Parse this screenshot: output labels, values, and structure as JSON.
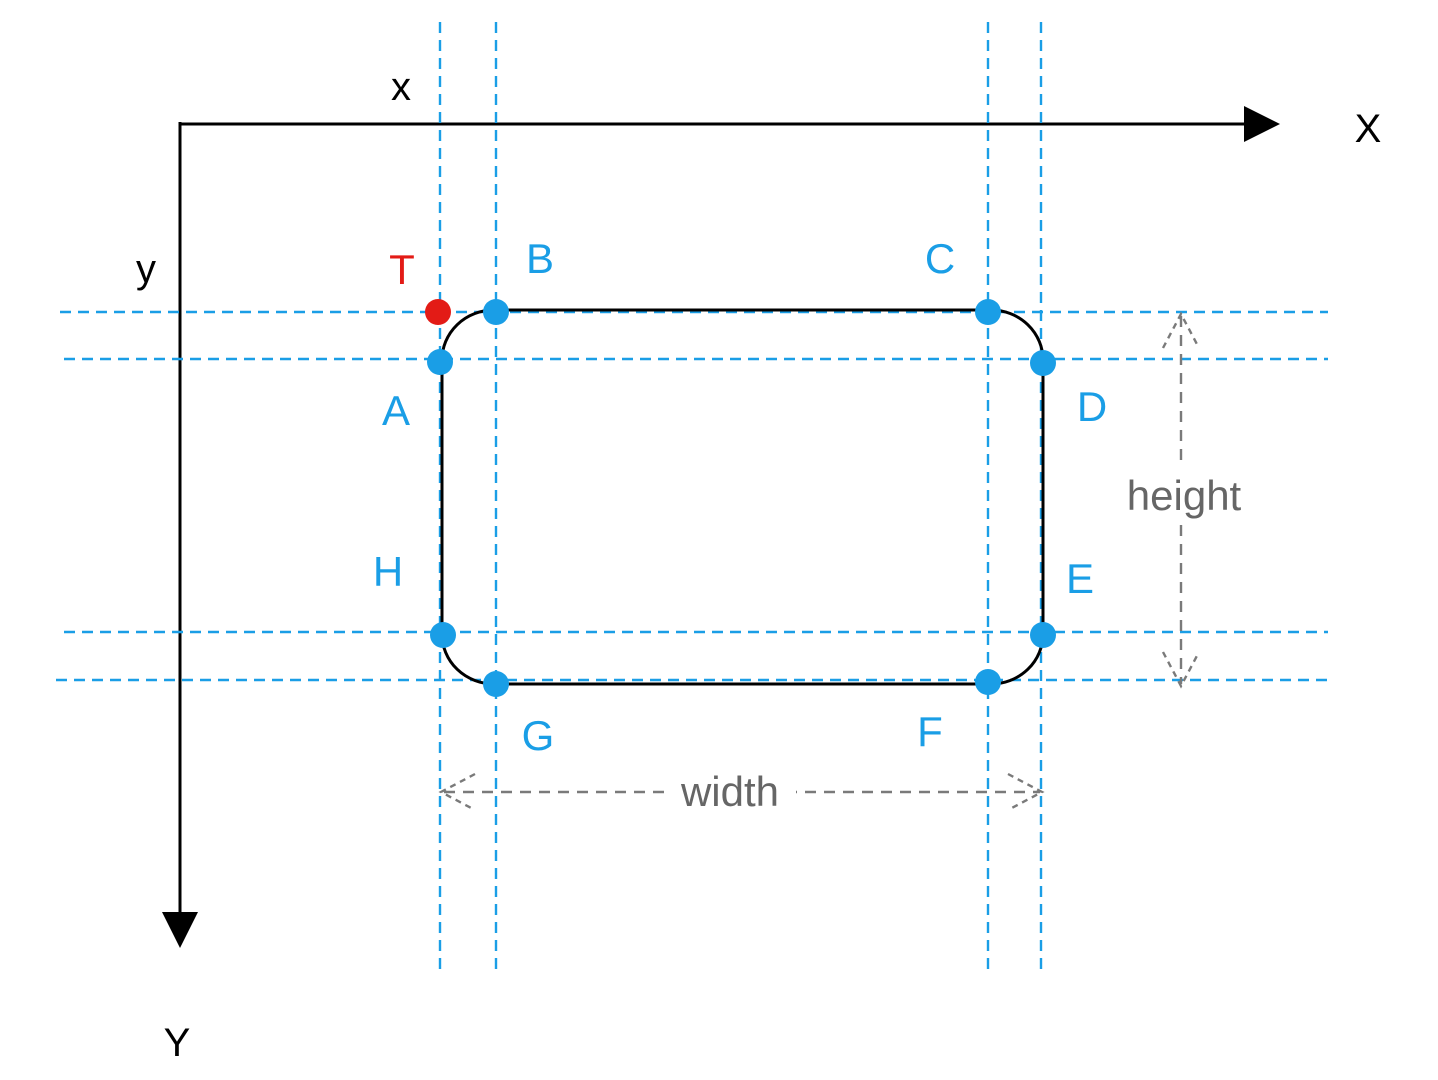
{
  "axes": {
    "x_upper": "X",
    "y_upper": "Y",
    "x_lower": "x",
    "y_lower": "y"
  },
  "origin_point": {
    "label": "T",
    "color": "#e31b16"
  },
  "points": [
    {
      "id": "A",
      "label": "A"
    },
    {
      "id": "B",
      "label": "B"
    },
    {
      "id": "C",
      "label": "C"
    },
    {
      "id": "D",
      "label": "D"
    },
    {
      "id": "E",
      "label": "E"
    },
    {
      "id": "F",
      "label": "F"
    },
    {
      "id": "G",
      "label": "G"
    },
    {
      "id": "H",
      "label": "H"
    }
  ],
  "dimensions": {
    "width": "width",
    "height": "height"
  },
  "colors": {
    "guide": "#1a9ee6",
    "point": "#1a9ee6",
    "dimension": "#7a7a7a",
    "outline": "#000000"
  }
}
